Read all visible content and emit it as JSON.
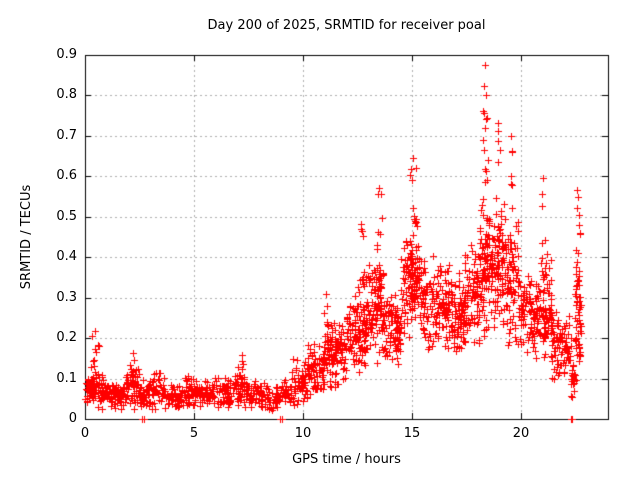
{
  "chart_data": {
    "type": "scatter",
    "title": "Day 200 of 2025, SRMTID for receiver poal",
    "xlabel": "GPS time / hours",
    "ylabel": "SRMTID / TECUs",
    "xlim": [
      0,
      24
    ],
    "ylim": [
      0,
      0.9
    ],
    "xticks": [
      {
        "v": 0,
        "label": "0"
      },
      {
        "v": 5,
        "label": "5"
      },
      {
        "v": 10,
        "label": "10"
      },
      {
        "v": 15,
        "label": "15"
      },
      {
        "v": 20,
        "label": "20"
      }
    ],
    "yticks": [
      {
        "v": 0.0,
        "label": "0"
      },
      {
        "v": 0.1,
        "label": "0.1"
      },
      {
        "v": 0.2,
        "label": "0.2"
      },
      {
        "v": 0.3,
        "label": "0.3"
      },
      {
        "v": 0.4,
        "label": "0.4"
      },
      {
        "v": 0.5,
        "label": "0.5"
      },
      {
        "v": 0.6,
        "label": "0.6"
      },
      {
        "v": 0.7,
        "label": "0.7"
      },
      {
        "v": 0.8,
        "label": "0.8"
      },
      {
        "v": 0.9,
        "label": "0.9"
      }
    ],
    "grid": true,
    "legend": "none",
    "marker": "plus",
    "colors": {
      "points": "#ff0000",
      "grid": "#b0b0b0",
      "axis": "#000000",
      "text": "#000000",
      "background": "#ffffff"
    },
    "seed": 1234567,
    "scatter_model": {
      "bands": [
        [
          0.0,
          0.5,
          45,
          0.025,
          0.12
        ],
        [
          0.5,
          1.0,
          40,
          0.02,
          0.13
        ],
        [
          1.0,
          1.8,
          60,
          0.02,
          0.1
        ],
        [
          1.8,
          2.5,
          55,
          0.02,
          0.13
        ],
        [
          2.5,
          3.1,
          45,
          0.02,
          0.1
        ],
        [
          3.1,
          3.7,
          40,
          0.02,
          0.12
        ],
        [
          3.7,
          4.4,
          50,
          0.02,
          0.09
        ],
        [
          4.4,
          5.1,
          50,
          0.02,
          0.11
        ],
        [
          5.1,
          5.9,
          55,
          0.02,
          0.1
        ],
        [
          5.9,
          6.7,
          55,
          0.02,
          0.11
        ],
        [
          6.7,
          7.5,
          55,
          0.02,
          0.13
        ],
        [
          7.5,
          8.3,
          55,
          0.02,
          0.11
        ],
        [
          8.3,
          9.0,
          45,
          0.02,
          0.09
        ],
        [
          9.0,
          9.5,
          30,
          0.025,
          0.1
        ],
        [
          9.5,
          10.2,
          55,
          0.03,
          0.15
        ],
        [
          10.2,
          11.0,
          70,
          0.05,
          0.2
        ],
        [
          11.0,
          12.0,
          100,
          0.07,
          0.26
        ],
        [
          12.0,
          12.9,
          100,
          0.1,
          0.34
        ],
        [
          12.9,
          13.7,
          95,
          0.13,
          0.42
        ],
        [
          13.7,
          14.5,
          85,
          0.12,
          0.33
        ],
        [
          14.5,
          15.3,
          100,
          0.18,
          0.5
        ],
        [
          15.3,
          16.3,
          100,
          0.15,
          0.42
        ],
        [
          16.3,
          17.4,
          115,
          0.14,
          0.38
        ],
        [
          17.4,
          18.1,
          85,
          0.16,
          0.45
        ],
        [
          18.1,
          18.7,
          85,
          0.2,
          0.58
        ],
        [
          18.7,
          19.3,
          75,
          0.2,
          0.58
        ],
        [
          19.3,
          19.9,
          70,
          0.15,
          0.52
        ],
        [
          19.9,
          20.9,
          100,
          0.14,
          0.38
        ],
        [
          20.9,
          21.4,
          55,
          0.1,
          0.45
        ],
        [
          21.4,
          22.3,
          80,
          0.07,
          0.28
        ],
        [
          22.3,
          22.55,
          22,
          0.04,
          0.16
        ],
        [
          22.5,
          22.75,
          40,
          0.08,
          0.45
        ]
      ],
      "spikes": [
        [
          0.45,
          0.35,
          0.08,
          0.22,
          22
        ],
        [
          2.2,
          0.25,
          0.08,
          0.16,
          10
        ],
        [
          7.2,
          0.2,
          0.08,
          0.15,
          8
        ],
        [
          11.05,
          0.2,
          0.12,
          0.31,
          12
        ],
        [
          12.68,
          0.25,
          0.2,
          0.48,
          16
        ],
        [
          13.5,
          0.25,
          0.25,
          0.57,
          18
        ],
        [
          15.05,
          0.3,
          0.3,
          0.645,
          22
        ],
        [
          16.6,
          0.2,
          0.25,
          0.45,
          10
        ],
        [
          18.35,
          0.3,
          0.35,
          0.8,
          22
        ],
        [
          18.95,
          0.2,
          0.35,
          0.72,
          12
        ],
        [
          19.55,
          0.2,
          0.3,
          0.69,
          10
        ],
        [
          21.05,
          0.2,
          0.2,
          0.6,
          14
        ],
        [
          22.6,
          0.22,
          0.15,
          0.55,
          26
        ]
      ],
      "extremes": [
        [
          18.35,
          0.875
        ],
        [
          18.32,
          0.823
        ],
        [
          18.38,
          0.8
        ],
        [
          18.3,
          0.757
        ],
        [
          18.41,
          0.742
        ],
        [
          15.03,
          0.645
        ],
        [
          14.98,
          0.618
        ],
        [
          18.93,
          0.731
        ],
        [
          18.97,
          0.712
        ],
        [
          19.54,
          0.7
        ],
        [
          19.58,
          0.662
        ],
        [
          21.04,
          0.597
        ],
        [
          22.6,
          0.565
        ],
        [
          22.63,
          0.548
        ],
        [
          13.5,
          0.572
        ],
        [
          13.46,
          0.556
        ],
        [
          12.68,
          0.481
        ],
        [
          12.71,
          0.466
        ],
        [
          11.04,
          0.31
        ],
        [
          0.44,
          0.218
        ],
        [
          0.3,
          0.205
        ],
        [
          2.21,
          0.163
        ],
        [
          7.22,
          0.158
        ]
      ],
      "near_zero_outliers": [
        [
          2.63,
          0.0
        ],
        [
          2.7,
          0.0
        ],
        [
          8.95,
          0.0
        ],
        [
          9.02,
          0.0
        ],
        [
          22.3,
          0.0
        ],
        [
          22.37,
          0.0
        ]
      ]
    }
  }
}
